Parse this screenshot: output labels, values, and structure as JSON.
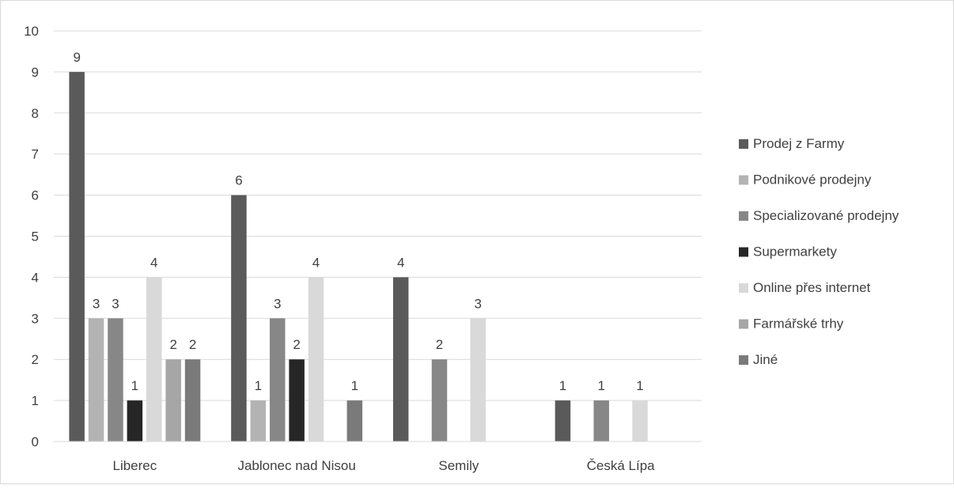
{
  "chart_data": {
    "type": "bar",
    "title": "",
    "xlabel": "",
    "ylabel": "",
    "categories": [
      "Liberec",
      "Jablonec nad Nisou",
      "Semily",
      "Česká Lípa"
    ],
    "ylim": [
      0,
      10
    ],
    "yticks": [
      "0",
      "1",
      "2",
      "3",
      "4",
      "5",
      "6",
      "7",
      "8",
      "9",
      "10"
    ],
    "grid": true,
    "legend_position": "right",
    "series": [
      {
        "name": "Prodej z Farmy",
        "color": "#5a5a5a",
        "values": [
          9,
          6,
          4,
          1
        ]
      },
      {
        "name": "Podnikové prodejny",
        "color": "#b3b3b3",
        "values": [
          3,
          1,
          null,
          null
        ]
      },
      {
        "name": "Specializované prodejny",
        "color": "#878787",
        "values": [
          3,
          3,
          2,
          1
        ]
      },
      {
        "name": "Supermarkety",
        "color": "#262626",
        "values": [
          1,
          2,
          null,
          null
        ]
      },
      {
        "name": "Online přes internet",
        "color": "#d9d9d9",
        "values": [
          4,
          4,
          3,
          1
        ]
      },
      {
        "name": "Farmářské trhy",
        "color": "#a6a6a6",
        "values": [
          2,
          null,
          null,
          null
        ]
      },
      {
        "name": "Jiné",
        "color": "#7a7a7a",
        "values": [
          2,
          1,
          null,
          null
        ]
      }
    ]
  }
}
